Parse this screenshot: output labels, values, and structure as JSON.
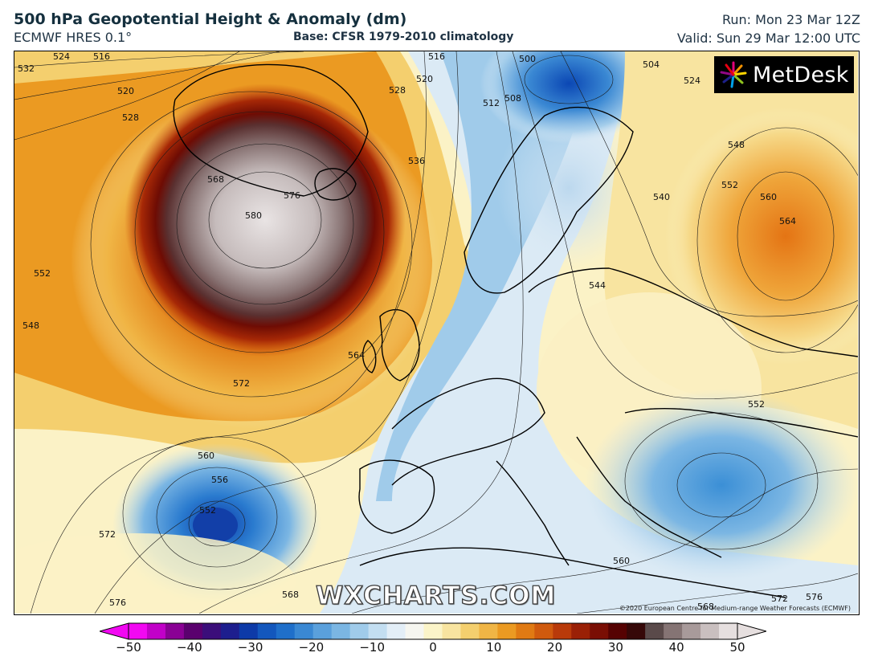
{
  "header": {
    "title": "500 hPa Geopotential Height & Anomaly (dm)",
    "model": "ECMWF HRES 0.1°",
    "base": "Base: CFSR 1979-2010 climatology",
    "run": "Run: Mon 23 Mar 12Z",
    "valid": "Valid: Sun 29 Mar 12:00 UTC"
  },
  "map": {
    "contour_labels": [
      "532",
      "524",
      "516",
      "520",
      "528",
      "568",
      "576",
      "580",
      "552",
      "548",
      "564",
      "572",
      "560",
      "556",
      "552",
      "572",
      "576",
      "568",
      "536",
      "528",
      "520",
      "516",
      "512",
      "508",
      "500",
      "504",
      "524",
      "548",
      "552",
      "560",
      "564",
      "540",
      "544",
      "552",
      "560",
      "572",
      "576",
      "568"
    ],
    "watermark": "WXCHARTS.COM",
    "logo": "MetDesk",
    "copyright": "©2020 European Centre for Medium-range Weather Forecasts (ECMWF)"
  },
  "colorbar": {
    "unit": "dm",
    "ticks": [
      "−50",
      "−40",
      "−30",
      "−20",
      "−10",
      "0",
      "10",
      "20",
      "30",
      "40",
      "50"
    ],
    "min": -50,
    "max": 50,
    "colors": [
      "#f208f2",
      "#c100c8",
      "#8a0095",
      "#5a006e",
      "#3b0e7a",
      "#1d1e8e",
      "#0d3aa8",
      "#1357bd",
      "#1f6fca",
      "#3a88d3",
      "#5aa0dc",
      "#7bb6e3",
      "#a0cbea",
      "#c3def1",
      "#e3eef7",
      "#f6f6f0",
      "#fbf4c8",
      "#f8e4a0",
      "#f4cf6e",
      "#f0b545",
      "#eb9a22",
      "#e07a13",
      "#d05a0e",
      "#b93a0a",
      "#9a2006",
      "#7a0e04",
      "#560202",
      "#360808",
      "#5a4a4a",
      "#857474",
      "#a89a9a",
      "#c9bfbf",
      "#e6dfdf"
    ]
  }
}
